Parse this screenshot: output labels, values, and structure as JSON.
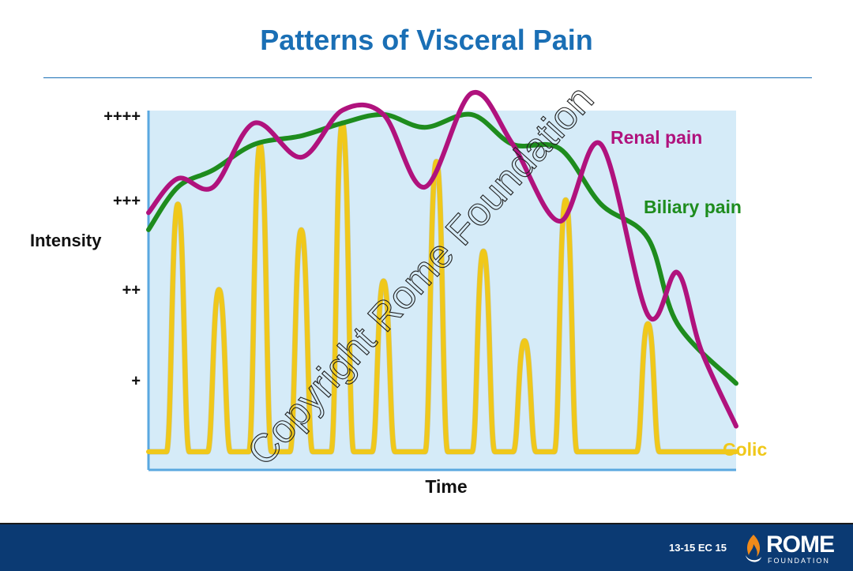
{
  "slide": {
    "title": "Patterns of Visceral Pain"
  },
  "chart_data": {
    "type": "line",
    "title": "Patterns of Visceral Pain",
    "xlabel": "Time",
    "ylabel": "Intensity",
    "y_ticks": [
      "+",
      "++",
      "+++",
      "++++"
    ],
    "ylim": [
      0,
      4.2
    ],
    "xlim": [
      0,
      100
    ],
    "background_color": "#d5ebf8",
    "series": [
      {
        "name": "Renal pain",
        "color": "#b0127d",
        "x": [
          0,
          5,
          11,
          18,
          26,
          33,
          40,
          47,
          55,
          62,
          70,
          77,
          85,
          90,
          94,
          100
        ],
        "y": [
          2.8,
          3.2,
          3.1,
          3.85,
          3.45,
          4.0,
          3.95,
          3.1,
          4.2,
          3.6,
          2.7,
          3.6,
          1.6,
          2.1,
          1.2,
          0.3
        ]
      },
      {
        "name": "Biliary pain",
        "color": "#1e8c1e",
        "x": [
          0,
          5,
          11,
          18,
          26,
          33,
          40,
          47,
          55,
          62,
          70,
          77,
          85,
          90,
          100
        ],
        "y": [
          2.6,
          3.1,
          3.3,
          3.6,
          3.7,
          3.85,
          3.95,
          3.8,
          3.95,
          3.6,
          3.55,
          2.9,
          2.5,
          1.5,
          0.8
        ]
      },
      {
        "name": "Colic",
        "color": "#f0c81a",
        "x": [
          0,
          5,
          12,
          19,
          26,
          33,
          40,
          49,
          57,
          64,
          71,
          85,
          100
        ],
        "y": [
          0,
          2.9,
          1.9,
          3.6,
          2.6,
          3.85,
          2.0,
          3.4,
          2.35,
          1.3,
          2.95,
          1.5,
          0
        ],
        "shape": "peaks"
      }
    ]
  },
  "watermark": "Copyright Rome Foundation",
  "footer": {
    "slide_code": "13-15 EC 15",
    "logo_text": "ROME",
    "logo_sub": "FOUNDATION"
  },
  "icons": {
    "logo": "rome-foundation-flame-icon"
  }
}
